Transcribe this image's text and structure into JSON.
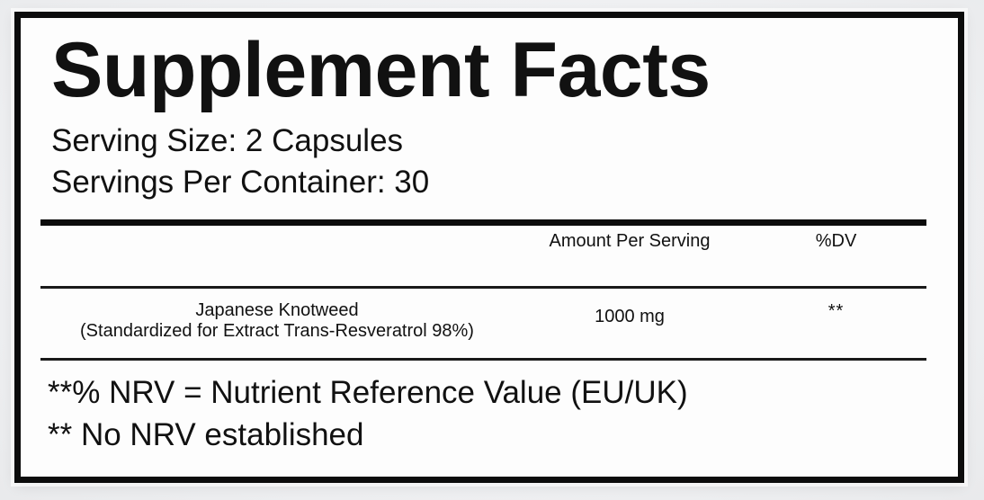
{
  "label": {
    "title": "Supplement Facts",
    "serving_size": "Serving Size: 2 Capsules",
    "servings_per_container": "Servings Per Container: 30",
    "table": {
      "headers": {
        "amount": "Amount Per Serving",
        "dv": "%DV"
      },
      "rows": [
        {
          "name": "Japanese Knotweed",
          "detail": "(Standardized for Extract Trans-Resveratrol 98%)",
          "amount": "1000 mg",
          "dv": "**"
        }
      ]
    },
    "footnotes": [
      "**% NRV = Nutrient Reference Value (EU/UK)",
      "** No NRV established"
    ]
  },
  "colors": {
    "border": "#0c0c0c",
    "label_bg": "#fdfdfd",
    "page_bg": "#eef0f2",
    "text": "#111111"
  }
}
